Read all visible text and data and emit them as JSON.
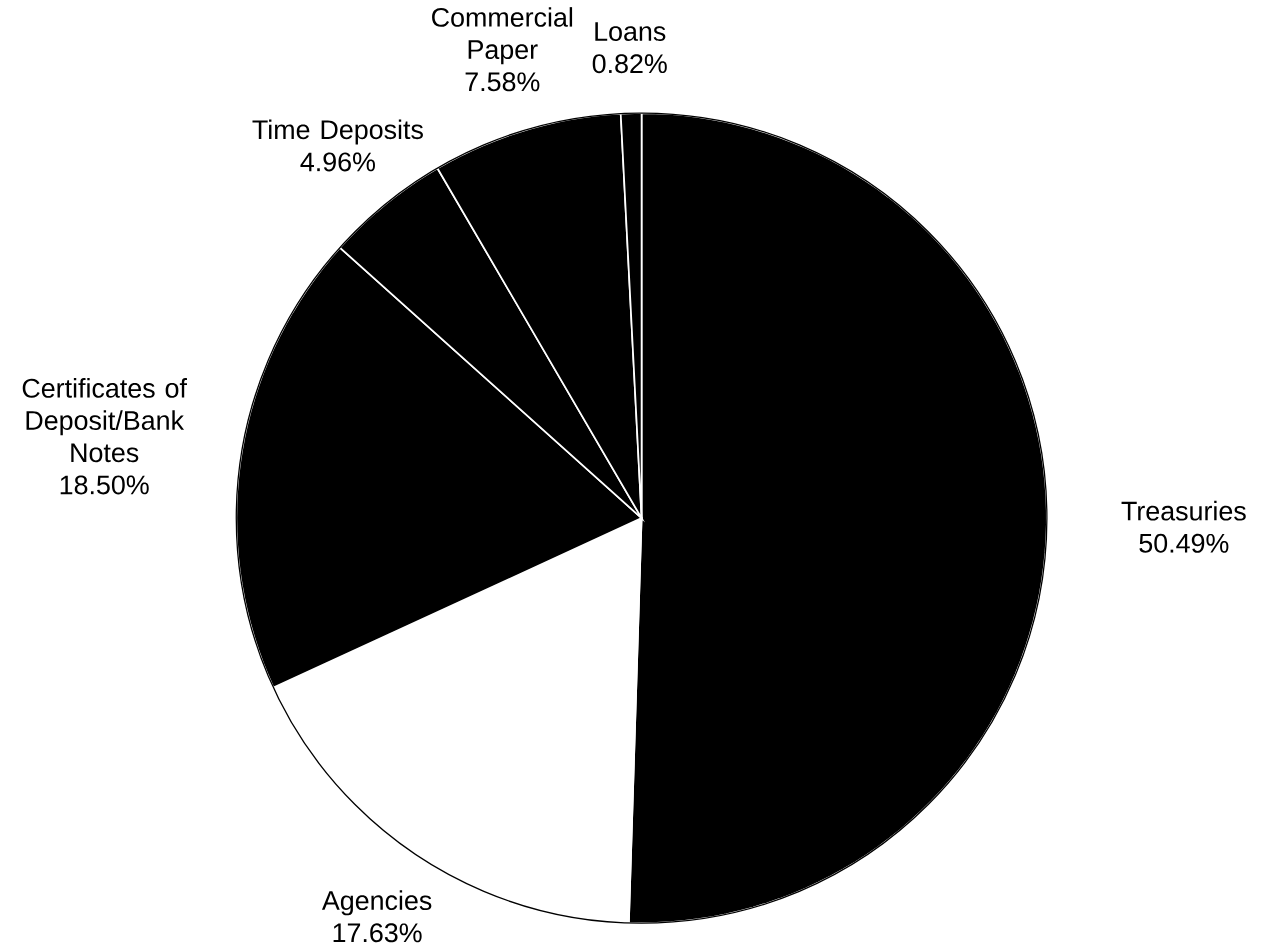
{
  "chart_data": {
    "type": "pie",
    "categories": [
      "Treasuries",
      "Agencies",
      "Certificates of Deposit/Bank Notes",
      "Time Deposits",
      "Commercial Paper",
      "Loans"
    ],
    "values": [
      50.49,
      17.63,
      18.5,
      4.96,
      7.58,
      0.82
    ],
    "value_labels": [
      "50.49%",
      "17.63%",
      "18.50%",
      "4.96%",
      "7.58%",
      "0.82%"
    ],
    "colors": [
      "#000000",
      "#ffffff",
      "#000000",
      "#000000",
      "#000000",
      "#000000"
    ]
  }
}
